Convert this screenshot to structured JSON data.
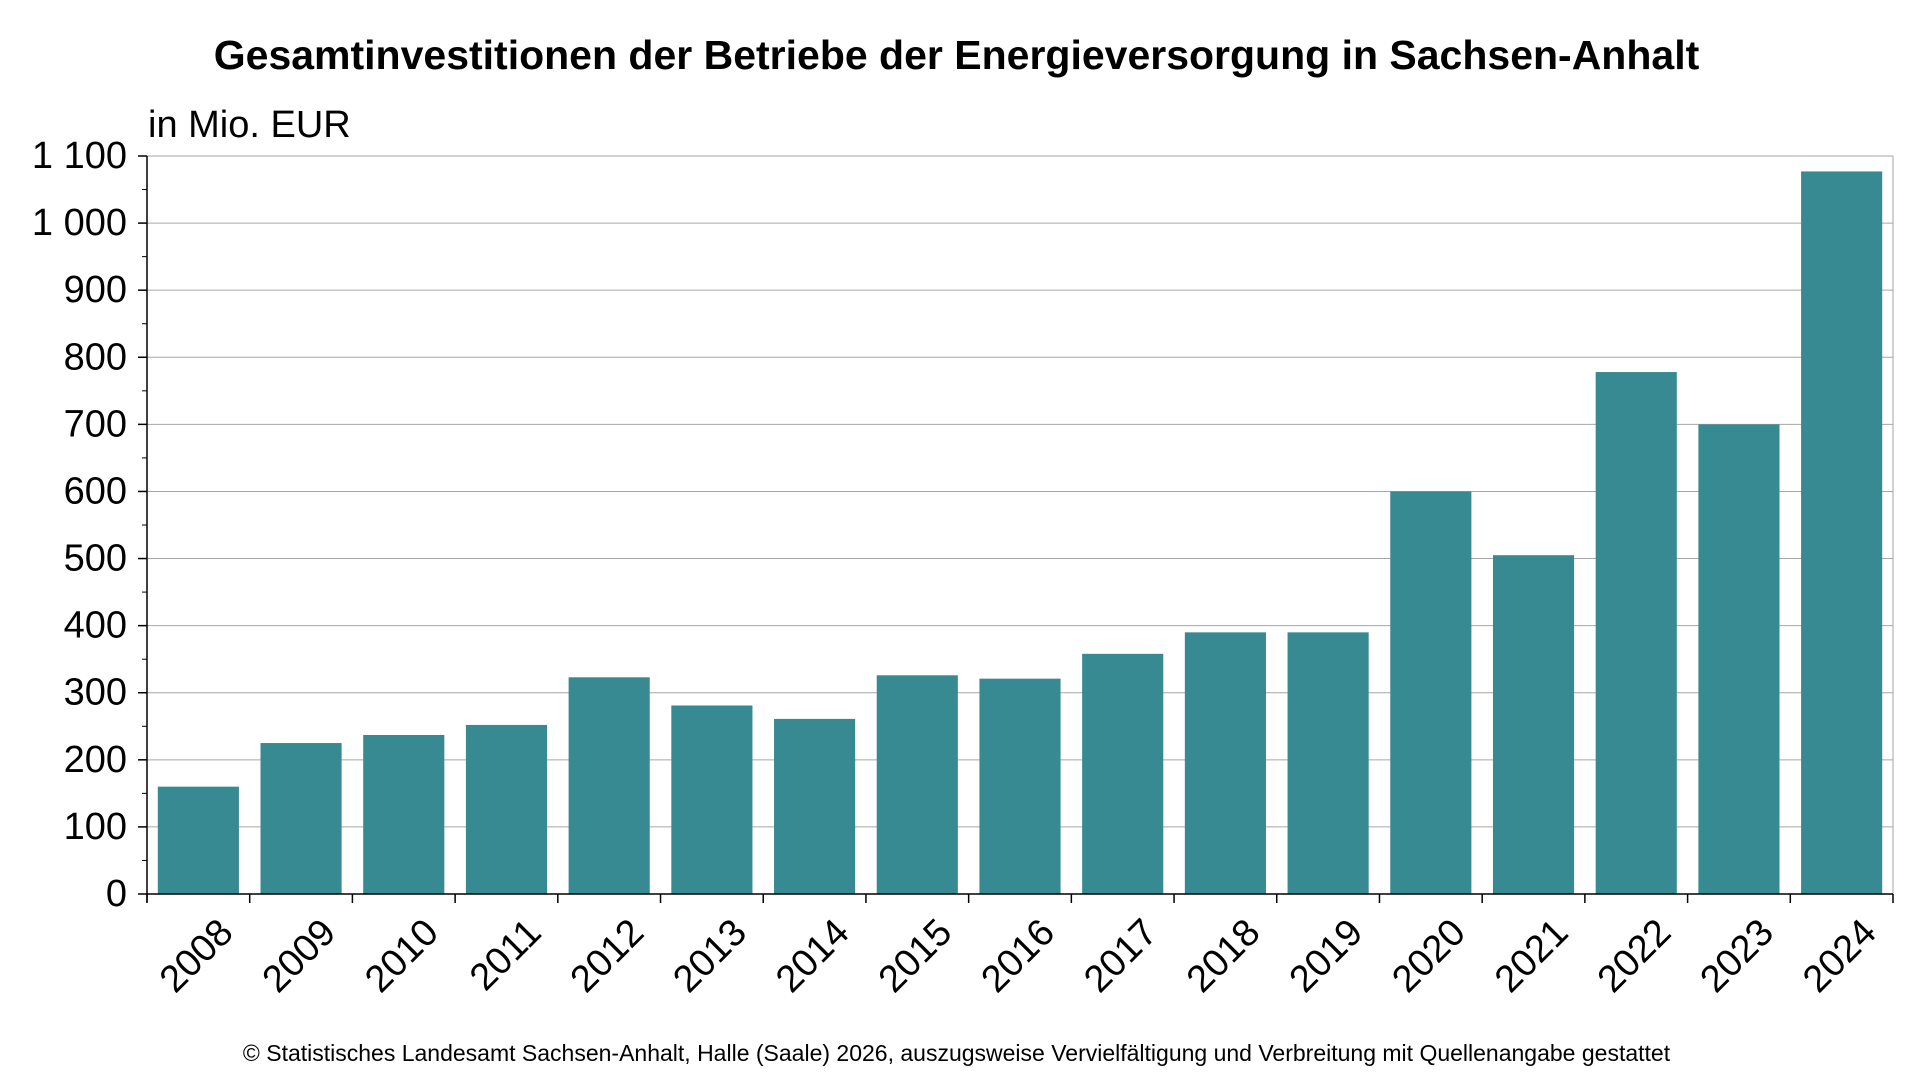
{
  "chart_data": {
    "type": "bar",
    "title": "Gesamtinvestitionen der Betriebe der Energieversorgung in Sachsen-Anhalt",
    "unit_label": "in Mio. EUR",
    "xlabel": "",
    "ylabel": "",
    "categories": [
      "2008",
      "2009",
      "2010",
      "2011",
      "2012",
      "2013",
      "2014",
      "2015",
      "2016",
      "2017",
      "2018",
      "2019",
      "2020",
      "2021",
      "2022",
      "2023",
      "2024"
    ],
    "values": [
      160,
      225,
      237,
      252,
      323,
      281,
      261,
      326,
      321,
      358,
      390,
      390,
      600,
      505,
      778,
      700,
      1077
    ],
    "ylim": [
      0,
      1100
    ],
    "yticks": [
      0,
      100,
      200,
      300,
      400,
      500,
      600,
      700,
      800,
      900,
      1000,
      1100
    ],
    "ytick_labels": [
      "0",
      "100",
      "200",
      "300",
      "400",
      "500",
      "600",
      "700",
      "800",
      "900",
      "1 000",
      "1 100"
    ],
    "grid": true,
    "legend": "none",
    "bar_color": "#388a92"
  },
  "footer": {
    "credit": "© Statistisches Landesamt Sachsen-Anhalt, Halle (Saale) 2026, auszugsweise Vervielfältigung und Verbreitung mit Quellenangabe gestattet"
  }
}
